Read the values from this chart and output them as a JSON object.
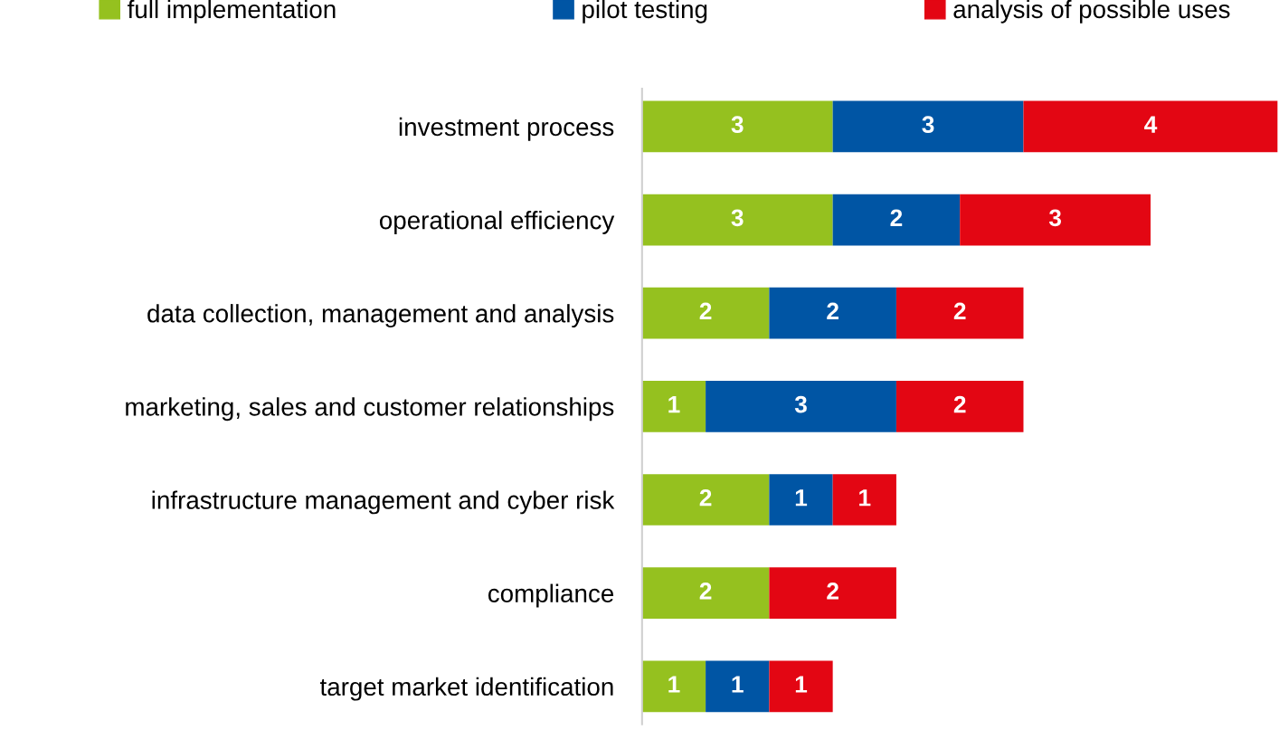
{
  "chart_data": {
    "type": "bar",
    "orientation": "horizontal",
    "stacked": true,
    "data_labels": true,
    "legend": "top",
    "grid": false,
    "tick_labels": "y",
    "categories": [
      "investment process",
      "operational efficiency",
      "data collection, management and analysis",
      "marketing, sales and customer relationships",
      "infrastructure management and cyber risk",
      "compliance",
      "target market identification"
    ],
    "series": [
      {
        "name": "full implementation",
        "color": "#95c11f",
        "values": [
          3,
          3,
          2,
          1,
          2,
          2,
          1
        ]
      },
      {
        "name": "pilot testing",
        "color": "#0055a4",
        "values": [
          3,
          2,
          2,
          3,
          1,
          null,
          1
        ]
      },
      {
        "name": "analysis of possible uses",
        "color": "#e30613",
        "values": [
          4,
          3,
          2,
          2,
          1,
          2,
          1
        ]
      }
    ]
  }
}
